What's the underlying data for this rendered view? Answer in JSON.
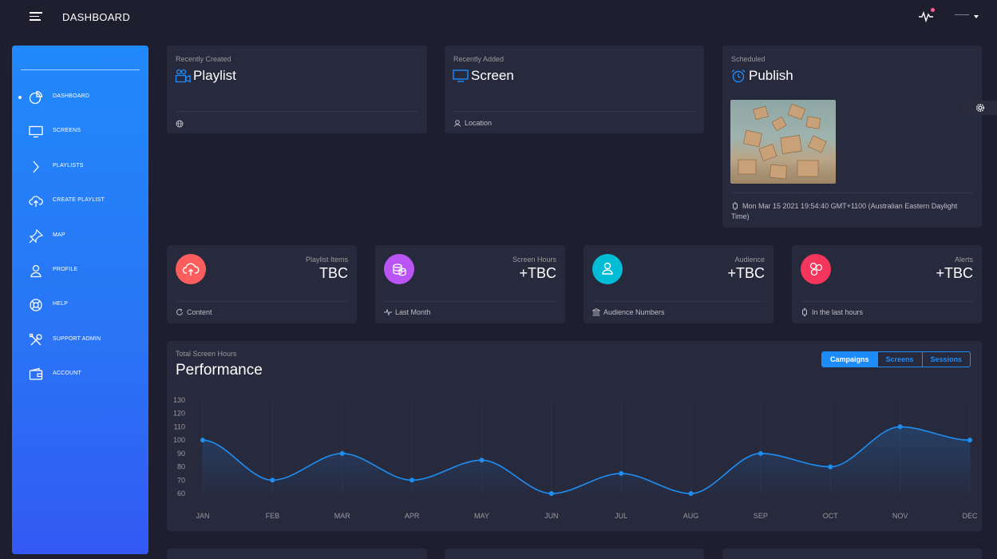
{
  "topbar": {
    "title": "DASHBOARD"
  },
  "sidebar": {
    "items": [
      {
        "label": "DASHBOARD",
        "icon": "pie-chart-icon"
      },
      {
        "label": "SCREENS",
        "icon": "monitor-icon"
      },
      {
        "label": "PLAYLISTS",
        "icon": "chevron-right-icon"
      },
      {
        "label": "CREATE PLAYLIST",
        "icon": "cloud-upload-icon"
      },
      {
        "label": "MAP",
        "icon": "pin-icon"
      },
      {
        "label": "PROFILE",
        "icon": "user-icon"
      },
      {
        "label": "HELP",
        "icon": "lifebuoy-icon"
      },
      {
        "label": "SUPPORT ADMIN",
        "icon": "tools-icon"
      },
      {
        "label": "ACCOUNT",
        "icon": "wallet-icon"
      }
    ]
  },
  "cards": {
    "playlist": {
      "category": "Recently Created",
      "title": "Playlist",
      "icon": "video-user-icon"
    },
    "screen": {
      "category": "Recently Added",
      "title": "Screen",
      "icon": "monitor-icon",
      "footer": "Location"
    },
    "publish": {
      "category": "Scheduled",
      "title": "Publish",
      "icon": "alarm-clock-icon",
      "footer": "Mon Mar 15 2021 19:54:40 GMT+1100 (Australian Eastern Daylight Time)"
    }
  },
  "stats": [
    {
      "label": "Playlist Items",
      "value": "TBC",
      "footer": "Content",
      "color": "#fd5d5d",
      "icon": "cloud-upload-icon",
      "footer_icon": "refresh-icon"
    },
    {
      "label": "Screen Hours",
      "value": "+TBC",
      "footer": "Last Month",
      "color": "#ba54f5",
      "icon": "coins-icon",
      "footer_icon": "activity-icon"
    },
    {
      "label": "Audience",
      "value": "+TBC",
      "footer": "Audience Numbers",
      "color": "#00bcd4",
      "icon": "user-icon",
      "footer_icon": "bank-icon"
    },
    {
      "label": "Alerts",
      "value": "+TBC",
      "footer": "In the last hours",
      "color": "#f5365c",
      "icon": "molecule-icon",
      "footer_icon": "watch-icon"
    }
  ],
  "performance": {
    "category": "Total Screen Hours",
    "title": "Performance",
    "tabs": [
      {
        "label": "Campaigns",
        "active": true
      },
      {
        "label": "Screens"
      },
      {
        "label": "Sessions"
      }
    ]
  },
  "chart_data": {
    "type": "line",
    "categories": [
      "JAN",
      "FEB",
      "MAR",
      "APR",
      "MAY",
      "JUN",
      "JUL",
      "AUG",
      "SEP",
      "OCT",
      "NOV",
      "DEC"
    ],
    "values": [
      100,
      70,
      90,
      70,
      85,
      60,
      75,
      60,
      90,
      80,
      110,
      100
    ],
    "yticks": [
      60,
      70,
      80,
      90,
      100,
      110,
      120,
      130
    ],
    "ylim": [
      60,
      130
    ],
    "color": "#1f8ef1",
    "grid": "vertical"
  }
}
